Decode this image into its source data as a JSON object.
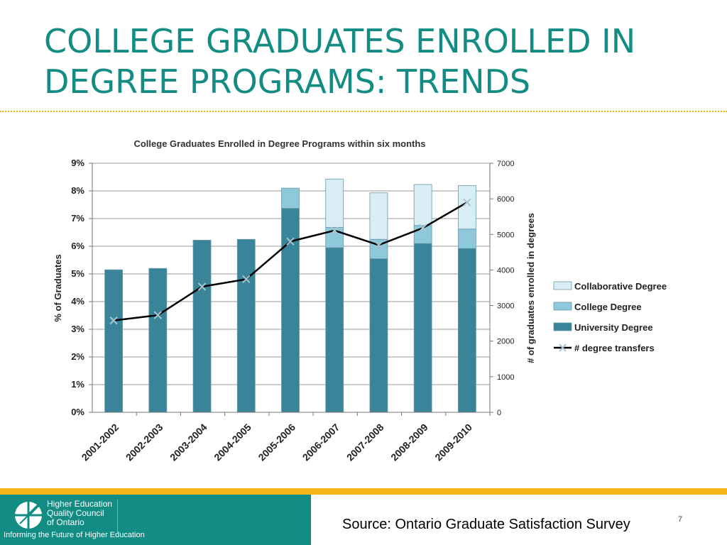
{
  "slide": {
    "title": "COLLEGE GRADUATES ENROLLED IN DEGREE PROGRAMS: TRENDS",
    "page_number": "7",
    "source": "Source: Ontario Graduate Satisfaction Survey"
  },
  "footer": {
    "org_lines": [
      "Higher Education",
      "Quality Council",
      "of Ontario"
    ],
    "tagline": "Informing the Future of Higher Education"
  },
  "colors": {
    "title": "#138d84",
    "footer_green": "#138d84",
    "footer_yellow": "#f4b616",
    "university": "#3a8499",
    "college": "#8ec8db",
    "collaborative": "#d9edf4",
    "line": "#000000",
    "marker": "#a9c3cf"
  },
  "chart_data": {
    "type": "bar",
    "stacked": true,
    "title": "College Graduates Enrolled in Degree Programs within six months",
    "ylabel": "% of Graduates",
    "y2label": "# of graduates enrolled in degrees",
    "categories": [
      "2001-2002",
      "2002-2003",
      "2003-2004",
      "2004-2005",
      "2005-2006",
      "2006-2007",
      "2007-2008",
      "2008-2009",
      "2009-2010"
    ],
    "ylim": [
      0,
      9
    ],
    "y_ticks": [
      "0%",
      "1%",
      "2%",
      "3%",
      "4%",
      "5%",
      "6%",
      "7%",
      "8%",
      "9%"
    ],
    "y2lim": [
      0,
      7000
    ],
    "y2_ticks": [
      "0",
      "1000",
      "2000",
      "3000",
      "4000",
      "5000",
      "6000",
      "7000"
    ],
    "grid": true,
    "legend_position": "right",
    "series": [
      {
        "name": "University Degree",
        "color": "#3a8499",
        "values": [
          5.15,
          5.2,
          6.22,
          6.25,
          7.37,
          5.95,
          5.55,
          6.1,
          5.92
        ]
      },
      {
        "name": "College Degree",
        "color": "#8ec8db",
        "values": [
          0,
          0,
          0,
          0,
          0.73,
          0.73,
          0.7,
          0.65,
          0.7
        ]
      },
      {
        "name": "Collaborative Degree",
        "color": "#d9edf4",
        "values": [
          0,
          0,
          0,
          0,
          0,
          1.75,
          1.68,
          1.48,
          1.57
        ]
      }
    ],
    "line_series": {
      "name": "# degree transfers",
      "axis": "right",
      "values": [
        2580,
        2730,
        3530,
        3740,
        4800,
        5110,
        4700,
        5180,
        5900
      ]
    },
    "legend_order": [
      "Collaborative Degree",
      "College Degree",
      "University Degree",
      "# degree transfers"
    ]
  }
}
